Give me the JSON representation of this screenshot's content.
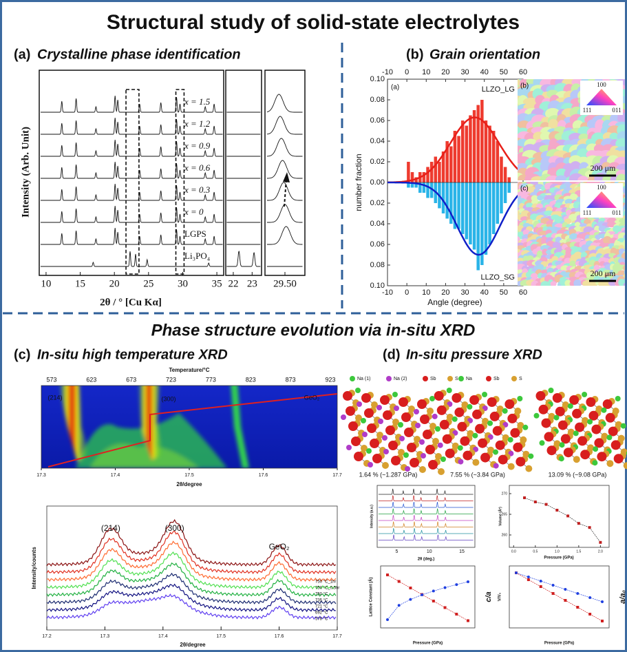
{
  "header": {
    "title": "Structural study of solid-state electrolytes"
  },
  "panel_a": {
    "label": "(a)",
    "title": "Crystalline phase identification",
    "ylabel": "Intensity (Arb. Unit)",
    "xlabel": "2θ / ° [Cu Kα]",
    "samples": [
      "x = 1.5",
      "x = 1.2",
      "x = 0.9",
      "x = 0.6",
      "x = 0.3",
      "x = 0",
      "LGPS",
      "Li₃PO₄"
    ],
    "xlim": [
      9,
      36
    ],
    "xticks": [
      10,
      15,
      20,
      25,
      30,
      35
    ],
    "zoom1_xlim": [
      21.6,
      23.5
    ],
    "zoom1_xticks": [
      22,
      23
    ],
    "zoom2_xlim": [
      29.3,
      29.7
    ],
    "zoom2_xticks": [
      {
        "value": 29.5,
        "label": "29.50"
      }
    ]
  },
  "panel_b": {
    "label": "(b)",
    "title": "Grain orientation",
    "sub_labels": [
      "(a)",
      "(b)",
      "(c)"
    ],
    "scale_bar": "200 μm",
    "ipf_labels": [
      "100",
      "111",
      "011"
    ],
    "chart_data": {
      "type": "bar",
      "xlabel": "Angle (degree)",
      "ylabel": "number fraction",
      "x": [
        0,
        2,
        4,
        6,
        8,
        10,
        12,
        14,
        16,
        18,
        20,
        22,
        24,
        26,
        28,
        30,
        32,
        34,
        36,
        38,
        40,
        42,
        44,
        46,
        48,
        50,
        52
      ],
      "series": [
        {
          "name": "LLZO_LG",
          "color": "#ee3b2f",
          "values": [
            0.02,
            0.01,
            0.005,
            0.01,
            0.01,
            0.015,
            0.02,
            0.025,
            0.02,
            0.03,
            0.04,
            0.035,
            0.05,
            0.045,
            0.06,
            0.055,
            0.065,
            0.07,
            0.075,
            0.08,
            0.06,
            0.055,
            0.05,
            0.04,
            0.025,
            0.015,
            0.005
          ]
        },
        {
          "name": "LLZO_SG",
          "color": "#2ab4e8",
          "values": [
            -0.005,
            -0.005,
            -0.005,
            -0.01,
            -0.01,
            -0.015,
            -0.015,
            -0.02,
            -0.025,
            -0.03,
            -0.035,
            -0.04,
            -0.045,
            -0.045,
            -0.05,
            -0.055,
            -0.06,
            -0.065,
            -0.085,
            -0.08,
            -0.07,
            -0.06,
            -0.05,
            -0.04,
            -0.03,
            -0.02,
            -0.01
          ]
        }
      ],
      "xlim": [
        -10,
        60
      ],
      "xticks": [
        -10,
        0,
        10,
        20,
        30,
        40,
        50,
        60
      ],
      "ylim": [
        -0.1,
        0.1
      ],
      "yticks": [
        {
          "value": -0.1,
          "label": "0.10"
        },
        {
          "value": -0.08,
          "label": "0.08"
        },
        {
          "value": -0.06,
          "label": "0.06"
        },
        {
          "value": -0.04,
          "label": "0.04"
        },
        {
          "value": -0.02,
          "label": "0.02"
        },
        {
          "value": 0,
          "label": "0.00"
        },
        {
          "value": 0.02,
          "label": "0.02"
        },
        {
          "value": 0.04,
          "label": "0.04"
        },
        {
          "value": 0.06,
          "label": "0.06"
        },
        {
          "value": 0.08,
          "label": "0.08"
        },
        {
          "value": 0.1,
          "label": "0.10"
        }
      ]
    }
  },
  "section2": {
    "title": "Phase structure evolution via in-situ XRD"
  },
  "panel_c": {
    "label": "(c)",
    "title": "In-situ high temperature XRD",
    "top": {
      "x2label": "Temperature/°C",
      "x2ticks": [
        573,
        623,
        673,
        723,
        773,
        823,
        873,
        923
      ],
      "xlabel": "2θ/degree",
      "xlim": [
        17.3,
        17.7
      ],
      "xticks": [
        17.3,
        17.4,
        17.5,
        17.6,
        17.7
      ],
      "peaks": [
        "(214)",
        "(300)",
        "GeO₂"
      ]
    },
    "bottom": {
      "ylabel": "Intensity/counts",
      "xlabel": "2θ/degree",
      "xlim": [
        17.2,
        17.7
      ],
      "xticks": [
        17.2,
        17.3,
        17.4,
        17.5,
        17.6,
        17.7
      ],
      "peaks": [
        "(214)",
        "(300)",
        "GeO₂"
      ],
      "legend": [
        "750 °C_1hr",
        "750 °C_0.5hr",
        "750 °C",
        "735 °C",
        "721 °C",
        "692 °C",
        "578 °C"
      ]
    }
  },
  "panel_d": {
    "label": "(d)",
    "title": "In-situ pressure XRD",
    "legend1": [
      "Na (1)",
      "Na (2)",
      "Sb",
      "S"
    ],
    "legend2": [
      "Na",
      "Sb",
      "S"
    ],
    "captions": [
      "1.64 % (~1.287 GPa)",
      "7.55 % (~3.84 GPa)",
      "13.09 % (~9.08 GPa)"
    ],
    "xrd": {
      "xlabel": "2θ (deg.)",
      "ylabel": "Intensity (a.u.)",
      "xticks": [
        5,
        10,
        15
      ]
    },
    "volume": {
      "xlabel": "Pressure (GPa)",
      "ylabel": "Volume (Å³)",
      "x": [
        0.25,
        0.5,
        0.75,
        1.0,
        1.25,
        1.5,
        1.75,
        2.0
      ],
      "values": [
        269,
        268,
        267.4,
        266,
        264.6,
        262.8,
        261.8,
        258.2
      ],
      "xlim": [
        -0.1,
        2.2
      ],
      "ylim": [
        257,
        272
      ],
      "xticks": [
        {
          "value": 0,
          "label": "0.0"
        },
        0.5,
        {
          "value": 1,
          "label": "1.0"
        },
        1.5,
        {
          "value": 2,
          "label": "2.0"
        }
      ],
      "yticks": [
        260,
        265,
        270
      ]
    },
    "lattice": {
      "xlabel": "Pressure (GPa)",
      "ylabel": "Lattice Constant (Å)",
      "y2label": "c/a"
    },
    "vv0": {
      "xlabel": "Pressure (GPa)",
      "ylabel": "V/V₀",
      "y2label": "a/a₀"
    }
  }
}
